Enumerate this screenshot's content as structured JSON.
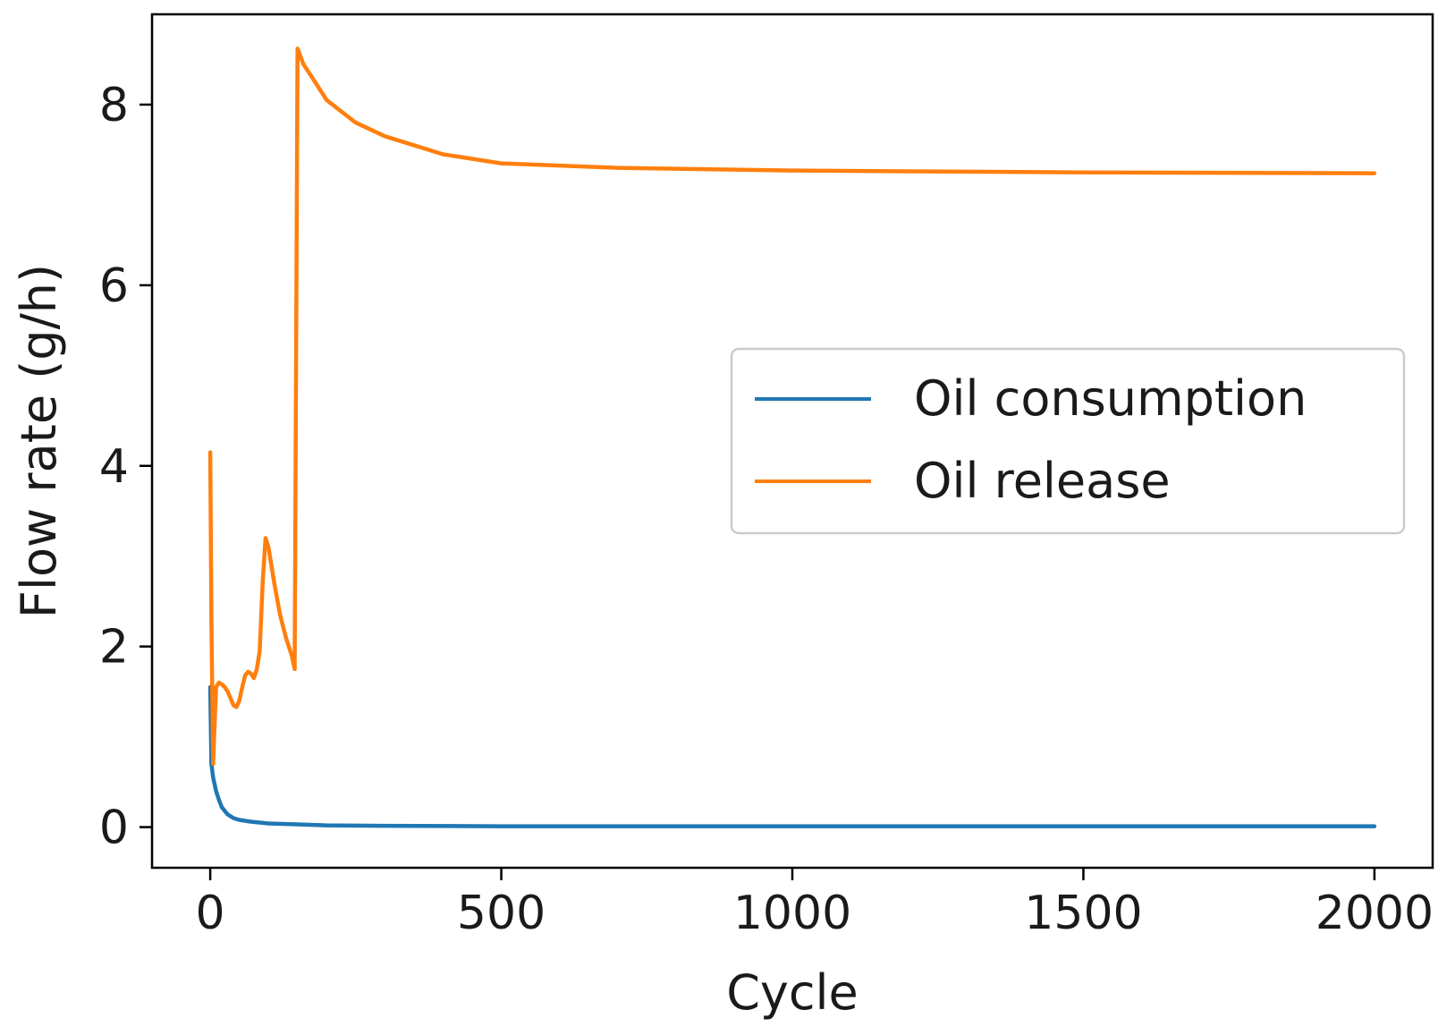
{
  "chart_data": {
    "type": "line",
    "title": "",
    "xlabel": "Cycle",
    "ylabel": "Flow rate (g/h)",
    "xlim": [
      -100,
      2100
    ],
    "ylim": [
      -0.45,
      9.0
    ],
    "xticks": [
      0,
      500,
      1000,
      1500,
      2000
    ],
    "xtick_labels": [
      "0",
      "500",
      "1000",
      "1500",
      "2000"
    ],
    "yticks": [
      0,
      2,
      4,
      6,
      8
    ],
    "ytick_labels": [
      "0",
      "2",
      "4",
      "6",
      "8"
    ],
    "grid": false,
    "legend_position": "center-right",
    "series": [
      {
        "name": "Oil consumption",
        "color": "#1f77b4",
        "x": [
          0,
          2,
          5,
          10,
          15,
          20,
          30,
          40,
          50,
          70,
          100,
          150,
          200,
          300,
          500,
          1000,
          1500,
          2000
        ],
        "y": [
          1.55,
          0.7,
          0.55,
          0.4,
          0.3,
          0.22,
          0.14,
          0.1,
          0.08,
          0.06,
          0.04,
          0.03,
          0.02,
          0.015,
          0.01,
          0.01,
          0.01,
          0.01
        ]
      },
      {
        "name": "Oil release",
        "color": "#ff7f0e",
        "x": [
          0,
          2,
          5,
          10,
          15,
          20,
          25,
          30,
          40,
          45,
          50,
          55,
          60,
          65,
          70,
          75,
          80,
          85,
          90,
          95,
          100,
          110,
          120,
          130,
          140,
          145,
          150,
          160,
          180,
          200,
          250,
          300,
          400,
          500,
          700,
          1000,
          1500,
          2000
        ],
        "y": [
          4.15,
          2.3,
          0.7,
          1.55,
          1.6,
          1.58,
          1.55,
          1.5,
          1.35,
          1.33,
          1.4,
          1.55,
          1.68,
          1.72,
          1.7,
          1.65,
          1.75,
          1.95,
          2.7,
          3.2,
          3.1,
          2.7,
          2.35,
          2.1,
          1.9,
          1.75,
          8.62,
          8.45,
          8.25,
          8.05,
          7.8,
          7.65,
          7.45,
          7.35,
          7.3,
          7.27,
          7.25,
          7.24
        ]
      }
    ]
  }
}
